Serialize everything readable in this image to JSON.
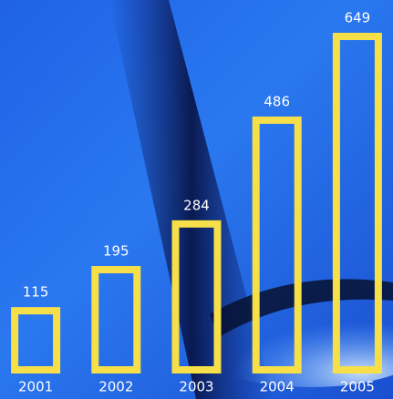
{
  "chart_data": {
    "type": "bar",
    "categories": [
      "2001",
      "2002",
      "2003",
      "2004",
      "2005"
    ],
    "values": [
      115,
      195,
      284,
      486,
      649
    ],
    "color": "#f6df48"
  }
}
